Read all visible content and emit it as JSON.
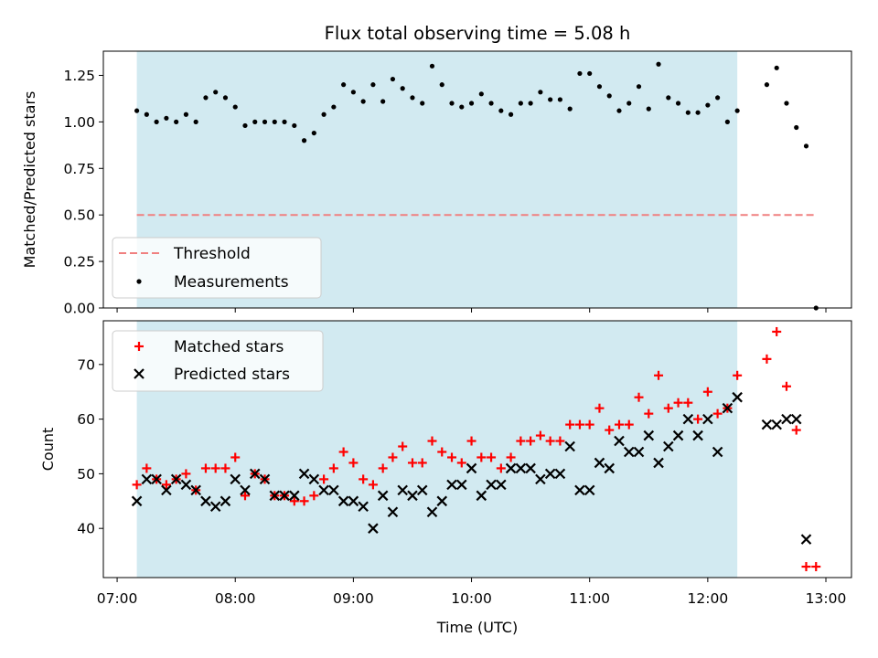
{
  "chart_data": [
    {
      "type": "scatter",
      "title": "Flux total observing time = 5.08 h",
      "ylabel": "Matched/Predicted stars",
      "xlabel": "",
      "ylim": [
        0,
        1.38
      ],
      "yticks": [
        "0.00",
        "0.25",
        "0.50",
        "0.75",
        "1.00",
        "1.25"
      ],
      "grid": false,
      "legend_position": "lower-left",
      "shaded_interval": {
        "start": "07:10",
        "end": "12:15",
        "color": "#add8e6"
      },
      "threshold": {
        "name": "Threshold",
        "value": 0.5,
        "color": "#f08080",
        "style": "dashed"
      },
      "series": [
        {
          "name": "Measurements",
          "marker": "dot",
          "color": "#000000",
          "x": [
            "07:10",
            "07:15",
            "07:20",
            "07:25",
            "07:30",
            "07:35",
            "07:40",
            "07:45",
            "07:50",
            "07:55",
            "08:00",
            "08:05",
            "08:10",
            "08:15",
            "08:20",
            "08:25",
            "08:30",
            "08:35",
            "08:40",
            "08:45",
            "08:50",
            "08:55",
            "09:00",
            "09:05",
            "09:10",
            "09:15",
            "09:20",
            "09:25",
            "09:30",
            "09:35",
            "09:40",
            "09:45",
            "09:50",
            "09:55",
            "10:00",
            "10:05",
            "10:10",
            "10:15",
            "10:20",
            "10:25",
            "10:30",
            "10:35",
            "10:40",
            "10:45",
            "10:50",
            "10:55",
            "11:00",
            "11:05",
            "11:10",
            "11:15",
            "11:20",
            "11:25",
            "11:30",
            "11:35",
            "11:40",
            "11:45",
            "11:50",
            "11:55",
            "12:00",
            "12:05",
            "12:10",
            "12:15",
            "12:30",
            "12:35",
            "12:40",
            "12:45",
            "12:50",
            "12:55"
          ],
          "y": [
            1.06,
            1.04,
            1.0,
            1.02,
            1.0,
            1.04,
            1.0,
            1.13,
            1.16,
            1.13,
            1.08,
            0.98,
            1.0,
            1.0,
            1.0,
            1.0,
            0.98,
            0.9,
            0.94,
            1.04,
            1.08,
            1.2,
            1.16,
            1.11,
            1.2,
            1.11,
            1.23,
            1.18,
            1.13,
            1.1,
            1.3,
            1.2,
            1.1,
            1.08,
            1.1,
            1.15,
            1.1,
            1.06,
            1.04,
            1.1,
            1.1,
            1.16,
            1.12,
            1.12,
            1.07,
            1.26,
            1.26,
            1.19,
            1.14,
            1.06,
            1.1,
            1.19,
            1.07,
            1.31,
            1.13,
            1.1,
            1.05,
            1.05,
            1.09,
            1.13,
            1.0,
            1.06,
            1.2,
            1.29,
            1.1,
            0.97,
            0.87,
            0.0
          ]
        }
      ]
    },
    {
      "type": "scatter",
      "title": "",
      "xlabel": "Time (UTC)",
      "ylabel": "Count",
      "ylim": [
        31,
        78
      ],
      "yticks": [
        "40",
        "50",
        "60",
        "70"
      ],
      "xticks": [
        "07:00",
        "08:00",
        "09:00",
        "10:00",
        "11:00",
        "12:00",
        "13:00"
      ],
      "x_range": [
        "06:53",
        "13:13"
      ],
      "grid": false,
      "legend_position": "upper-left",
      "shaded_interval": {
        "start": "07:10",
        "end": "12:15",
        "color": "#add8e6"
      },
      "series": [
        {
          "name": "Matched stars",
          "marker": "plus",
          "color": "#ff0000",
          "x": [
            "07:10",
            "07:15",
            "07:20",
            "07:25",
            "07:30",
            "07:35",
            "07:40",
            "07:45",
            "07:50",
            "07:55",
            "08:00",
            "08:05",
            "08:10",
            "08:15",
            "08:20",
            "08:25",
            "08:30",
            "08:35",
            "08:40",
            "08:45",
            "08:50",
            "08:55",
            "09:00",
            "09:05",
            "09:10",
            "09:15",
            "09:20",
            "09:25",
            "09:30",
            "09:35",
            "09:40",
            "09:45",
            "09:50",
            "09:55",
            "10:00",
            "10:05",
            "10:10",
            "10:15",
            "10:20",
            "10:25",
            "10:30",
            "10:35",
            "10:40",
            "10:45",
            "10:50",
            "10:55",
            "11:00",
            "11:05",
            "11:10",
            "11:15",
            "11:20",
            "11:25",
            "11:30",
            "11:35",
            "11:40",
            "11:45",
            "11:50",
            "11:55",
            "12:00",
            "12:05",
            "12:10",
            "12:15",
            "12:30",
            "12:35",
            "12:40",
            "12:45",
            "12:50",
            "12:55"
          ],
          "y": [
            48,
            51,
            49,
            48,
            49,
            50,
            47,
            51,
            51,
            51,
            53,
            46,
            50,
            49,
            46,
            46,
            45,
            45,
            46,
            49,
            51,
            54,
            52,
            49,
            48,
            51,
            53,
            55,
            52,
            52,
            56,
            54,
            53,
            52,
            56,
            53,
            53,
            51,
            53,
            56,
            56,
            57,
            56,
            56,
            59,
            59,
            59,
            62,
            58,
            59,
            59,
            64,
            61,
            68,
            62,
            63,
            63,
            60,
            65,
            61,
            62,
            68,
            71,
            76,
            66,
            58,
            33,
            33
          ]
        },
        {
          "name": "Predicted stars",
          "marker": "x",
          "color": "#000000",
          "x": [
            "07:10",
            "07:15",
            "07:20",
            "07:25",
            "07:30",
            "07:35",
            "07:40",
            "07:45",
            "07:50",
            "07:55",
            "08:00",
            "08:05",
            "08:10",
            "08:15",
            "08:20",
            "08:25",
            "08:30",
            "08:35",
            "08:40",
            "08:45",
            "08:50",
            "08:55",
            "09:00",
            "09:05",
            "09:10",
            "09:15",
            "09:20",
            "09:25",
            "09:30",
            "09:35",
            "09:40",
            "09:45",
            "09:50",
            "09:55",
            "10:00",
            "10:05",
            "10:10",
            "10:15",
            "10:20",
            "10:25",
            "10:30",
            "10:35",
            "10:40",
            "10:45",
            "10:50",
            "10:55",
            "11:00",
            "11:05",
            "11:10",
            "11:15",
            "11:20",
            "11:25",
            "11:30",
            "11:35",
            "11:40",
            "11:45",
            "11:50",
            "11:55",
            "12:00",
            "12:05",
            "12:10",
            "12:15",
            "12:30",
            "12:35",
            "12:40",
            "12:45",
            "12:50"
          ],
          "y": [
            45,
            49,
            49,
            47,
            49,
            48,
            47,
            45,
            44,
            45,
            49,
            47,
            50,
            49,
            46,
            46,
            46,
            50,
            49,
            47,
            47,
            45,
            45,
            44,
            40,
            46,
            43,
            47,
            46,
            47,
            43,
            45,
            48,
            48,
            51,
            46,
            48,
            48,
            51,
            51,
            51,
            49,
            50,
            50,
            55,
            47,
            47,
            52,
            51,
            56,
            54,
            54,
            57,
            52,
            55,
            57,
            60,
            57,
            60,
            54,
            62,
            64,
            59,
            59,
            60,
            60,
            38
          ]
        }
      ]
    }
  ]
}
